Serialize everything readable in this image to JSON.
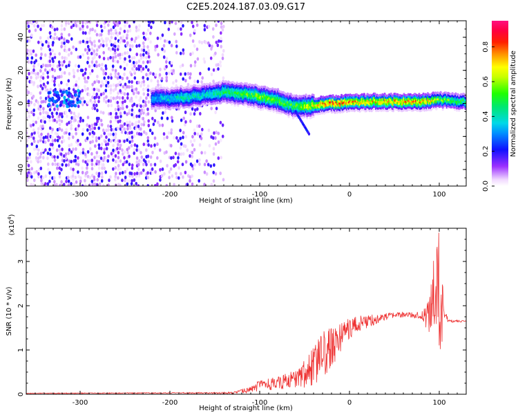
{
  "figure": {
    "title": "C2E5.2024.187.03.09.G17"
  },
  "chart_data": [
    {
      "type": "heatmap",
      "xlabel": "Height of straight line (km)",
      "ylabel": "Frequency (Hz)",
      "xlim": [
        -360,
        130
      ],
      "ylim": [
        -50,
        50
      ],
      "xticks": [
        -300,
        -200,
        -100,
        0,
        100
      ],
      "yticks": [
        -40,
        -20,
        0,
        20,
        40
      ],
      "colorbar": {
        "label": "Normalized spectral amplitude",
        "range": [
          0,
          0.95
        ],
        "ticks": [
          0.0,
          0.2,
          0.4,
          0.6,
          0.8
        ],
        "colormap": [
          "#ffffff",
          "#e6ccff",
          "#8a2be2",
          "#1414ff",
          "#00c8ff",
          "#00ff00",
          "#ffff00",
          "#ff8000",
          "#ff0000",
          "#ff00aa"
        ]
      },
      "ridge": {
        "description": "dominant frequency track (Hz) vs height (km)",
        "x": [
          -220,
          -200,
          -180,
          -160,
          -140,
          -120,
          -100,
          -80,
          -60,
          -40,
          -20,
          0,
          20,
          40,
          60,
          80,
          100,
          130
        ],
        "y": [
          3,
          3,
          4,
          5,
          7,
          6,
          4,
          2,
          -2,
          -1,
          0,
          0.5,
          1,
          1,
          1,
          1,
          2,
          1
        ],
        "amplitude": [
          0.35,
          0.4,
          0.45,
          0.4,
          0.5,
          0.55,
          0.6,
          0.55,
          0.55,
          0.7,
          0.85,
          0.8,
          0.75,
          0.75,
          0.8,
          0.8,
          0.6,
          0.5
        ]
      },
      "noise_region": [
        -360,
        -140
      ]
    },
    {
      "type": "line",
      "xlabel": "Height of straight line (km)",
      "ylabel": "SNR (10 * v/v)",
      "yscale_label": "(x10",
      "yscale_exp": "4",
      "xlim": [
        -360,
        130
      ],
      "ylim": [
        0,
        3.75
      ],
      "xticks": [
        -300,
        -200,
        -100,
        0,
        100
      ],
      "yticks": [
        0,
        1,
        2,
        3
      ],
      "color": "#ee3333",
      "envelope": {
        "x": [
          -360,
          -200,
          -130,
          -110,
          -100,
          -80,
          -60,
          -40,
          -30,
          -20,
          -10,
          0,
          20,
          40,
          60,
          80,
          90,
          95,
          100,
          105,
          110,
          130
        ],
        "y": [
          0.02,
          0.03,
          0.03,
          0.1,
          0.2,
          0.25,
          0.35,
          0.6,
          0.9,
          1.05,
          1.3,
          1.5,
          1.65,
          1.75,
          1.8,
          1.78,
          1.8,
          2.1,
          2.3,
          1.7,
          1.65,
          1.65
        ],
        "amplitude": [
          0.01,
          0.01,
          0.02,
          0.08,
          0.12,
          0.15,
          0.2,
          0.45,
          0.55,
          0.45,
          0.35,
          0.25,
          0.15,
          0.08,
          0.06,
          0.08,
          0.5,
          1.2,
          1.4,
          0.4,
          0.03,
          0.02
        ]
      }
    }
  ]
}
